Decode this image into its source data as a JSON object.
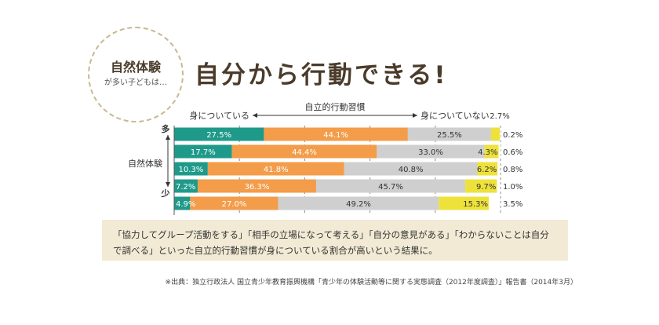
{
  "badge": {
    "title": "自然体験",
    "subtitle": "が多い子どもは…"
  },
  "headline": "自分から行動できる!",
  "chart_data": {
    "type": "bar",
    "orientation": "horizontal-stacked",
    "header": "自立的行動習慣",
    "left_label": "身についている",
    "right_label": "身についていない",
    "y_axis_label": "自然体験",
    "y_top_label": "多",
    "y_bottom_label": "少",
    "xlim": [
      0,
      100
    ],
    "x_ticks": [
      "0.0%",
      "20.0%",
      "40.0%",
      "60.0%",
      "80.0%",
      "100.0%"
    ],
    "top_annotation": "2.7%",
    "series_colors": [
      "#1f9a8a",
      "#f39c4a",
      "#cfcfcf",
      "#eee23a",
      "#ffffff"
    ],
    "rows": [
      {
        "values": [
          27.5,
          44.1,
          25.5,
          2.7,
          0.2
        ],
        "labels": [
          "27.5%",
          "44.1%",
          "25.5%",
          "",
          "0.2%"
        ]
      },
      {
        "values": [
          17.7,
          44.4,
          33.0,
          4.3,
          0.6
        ],
        "labels": [
          "17.7%",
          "44.4%",
          "33.0%",
          "4.3%",
          "0.6%"
        ]
      },
      {
        "values": [
          10.3,
          41.8,
          40.8,
          6.2,
          0.8
        ],
        "labels": [
          "10.3%",
          "41.8%",
          "40.8%",
          "6.2%",
          "0.8%"
        ]
      },
      {
        "values": [
          7.2,
          36.3,
          45.7,
          9.7,
          1.0
        ],
        "labels": [
          "7.2%",
          "36.3%",
          "45.7%",
          "9.7%",
          "1.0%"
        ]
      },
      {
        "values": [
          4.9,
          27.0,
          49.2,
          15.3,
          3.5
        ],
        "labels": [
          "4.9%",
          "27.0%",
          "49.2%",
          "15.3%",
          "3.5%"
        ]
      }
    ]
  },
  "note": "「協力してグループ活動をする」「相手の立場になって考える」「自分の意見がある」「わからないことは自分で調べる」といった自立的行動習慣が身についている割合が高いという結果に。",
  "source": "※出典：独立行政法人 国立青少年教育振興機構「青少年の体験活動等に関する実態調査（2012年度調査）」報告書（2014年3月）"
}
